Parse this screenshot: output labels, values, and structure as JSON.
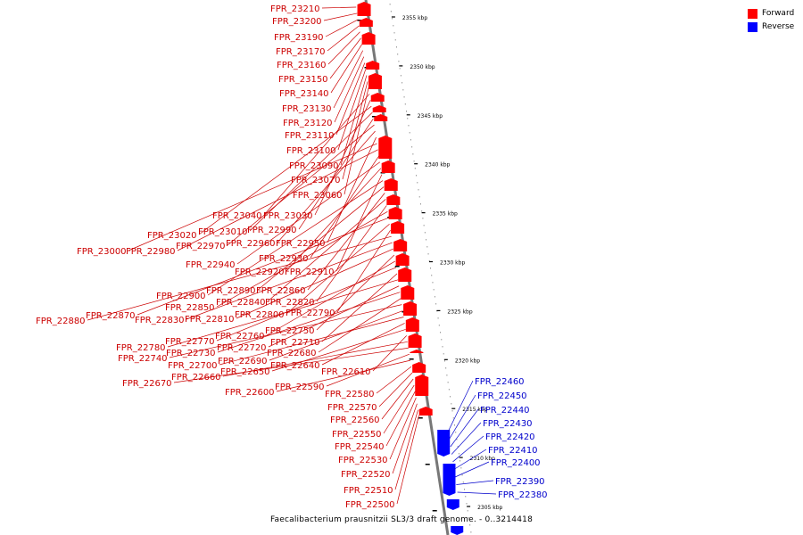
{
  "legend": {
    "forward_label": "Forward",
    "reverse_label": "Reverse",
    "forward_color": "#ff0000",
    "reverse_color": "#0000ff"
  },
  "caption": "Faecalibacterium prausnitzii SL3/3 draft genome. - 0..3214418",
  "scale": {
    "unit": "kbp",
    "ticks": [
      2355,
      2350,
      2345,
      2340,
      2335,
      2330,
      2325,
      2320,
      2315,
      2310,
      2305
    ]
  },
  "forward_genes": [
    "FPR_23210",
    "FPR_23200",
    "FPR_23190",
    "FPR_23170",
    "FPR_23160",
    "FPR_23150",
    "FPR_23140",
    "FPR_23130",
    "FPR_23120",
    "FPR_23110",
    "FPR_23100",
    "FPR_23090",
    "FPR_23070",
    "FPR_23060",
    "FPR_23040",
    "FPR_23030",
    "FPR_23020",
    "FPR_23010",
    "FPR_22990",
    "FPR_22970",
    "FPR_22960",
    "FPR_22950",
    "FPR_23000",
    "FPR_22980",
    "FPR_22930",
    "FPR_22940",
    "FPR_22920",
    "FPR_22910",
    "FPR_22900",
    "FPR_22890",
    "FPR_22860",
    "FPR_22840",
    "FPR_22820",
    "FPR_22850",
    "FPR_22870",
    "FPR_22800",
    "FPR_22790",
    "FPR_22880",
    "FPR_22830",
    "FPR_22810",
    "FPR_22750",
    "FPR_22760",
    "FPR_22770",
    "FPR_22710",
    "FPR_22780",
    "FPR_22720",
    "FPR_22730",
    "FPR_22680",
    "FPR_22740",
    "FPR_22690",
    "FPR_22700",
    "FPR_22640",
    "FPR_22650",
    "FPR_22610",
    "FPR_22660",
    "FPR_22670",
    "FPR_22590",
    "FPR_22600",
    "FPR_22580",
    "FPR_22570",
    "FPR_22560",
    "FPR_22550",
    "FPR_22540",
    "FPR_22530",
    "FPR_22520",
    "FPR_22510",
    "FPR_22500"
  ],
  "reverse_genes": [
    "FPR_22460",
    "FPR_22450",
    "FPR_22440",
    "FPR_22430",
    "FPR_22420",
    "FPR_22410",
    "FPR_22400",
    "FPR_22390",
    "FPR_22380"
  ]
}
